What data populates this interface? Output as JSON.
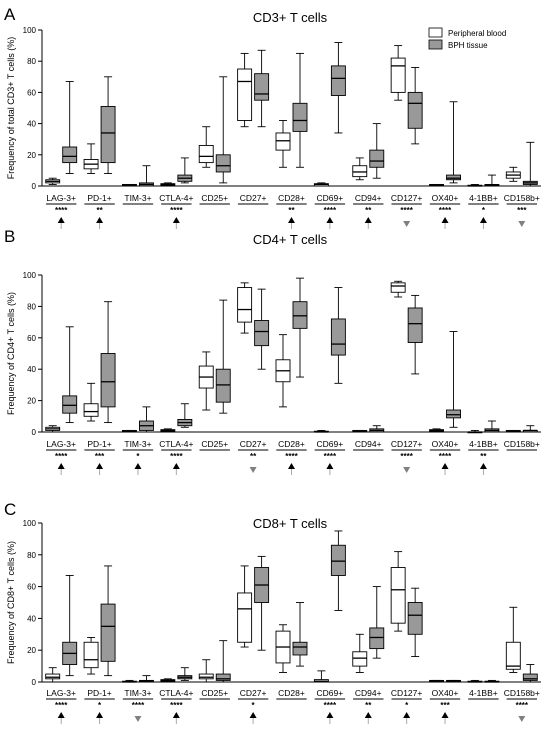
{
  "chart_data": [
    {
      "type": "boxplot",
      "panel_letter": "A",
      "title": "CD3+ T cells",
      "ylabel": "Frequency of total CD3+ T cells (%)",
      "ylim": [
        0,
        100
      ],
      "yticks": [
        0,
        20,
        40,
        60,
        80,
        100
      ],
      "legend": [
        "Peripheral blood",
        "BPH tissue"
      ],
      "legend_position": "top-right",
      "categories": [
        "LAG-3+",
        "PD-1+",
        "TIM-3+",
        "CTLA-4+",
        "CD25+",
        "CD27+",
        "CD28+",
        "CD69+",
        "CD94+",
        "CD127+",
        "OX40+",
        "4-1BB+",
        "CD158b+"
      ],
      "significance": [
        "****",
        "**",
        "",
        "****",
        "",
        "",
        "**",
        "****",
        "**",
        "****",
        "****",
        "*",
        "***"
      ],
      "arrows": [
        "up",
        "up",
        "",
        "up",
        "",
        "",
        "up",
        "up",
        "up",
        "down",
        "up",
        "up",
        "down"
      ],
      "series": [
        {
          "name": "Peripheral blood",
          "fill": "#ffffff",
          "boxes": [
            [
              1,
              2,
              3,
              4,
              5
            ],
            [
              8,
              11,
              14,
              17,
              27
            ],
            [
              0,
              0,
              0.5,
              1,
              1
            ],
            [
              0,
              0.5,
              1,
              1.5,
              2
            ],
            [
              12,
              15,
              19,
              26,
              38
            ],
            [
              38,
              42,
              67,
              75,
              85
            ],
            [
              12,
              23,
              29,
              34,
              42
            ],
            [
              0,
              0,
              1,
              1.5,
              2
            ],
            [
              4,
              6,
              9,
              13,
              18
            ],
            [
              55,
              60,
              77,
              82,
              90
            ],
            [
              0,
              0,
              0.5,
              1,
              1
            ],
            [
              0,
              0,
              0,
              0.5,
              1
            ],
            [
              3,
              5,
              7,
              9,
              12
            ]
          ]
        },
        {
          "name": "BPH tissue",
          "fill": "#999999",
          "boxes": [
            [
              8,
              15,
              19,
              25,
              67
            ],
            [
              8,
              15,
              34,
              51,
              70
            ],
            [
              0,
              0,
              1,
              2,
              13
            ],
            [
              2,
              3,
              5,
              7,
              18
            ],
            [
              2,
              9,
              13,
              20,
              70
            ],
            [
              38,
              55,
              59,
              72,
              87
            ],
            [
              12,
              35,
              42,
              53,
              85
            ],
            [
              34,
              58,
              69,
              77,
              92
            ],
            [
              5,
              12,
              16,
              23,
              40
            ],
            [
              27,
              37,
              53,
              60,
              76
            ],
            [
              2,
              4,
              5,
              7,
              54
            ],
            [
              0,
              0,
              0.5,
              1,
              7
            ],
            [
              0,
              1,
              2,
              3,
              28
            ]
          ]
        }
      ]
    },
    {
      "type": "boxplot",
      "panel_letter": "B",
      "title": "CD4+ T cells",
      "ylabel": "Frequency of CD4+ T cells (%)",
      "ylim": [
        0,
        100
      ],
      "yticks": [
        0,
        20,
        40,
        60,
        80,
        100
      ],
      "categories": [
        "LAG-3+",
        "PD-1+",
        "TIM-3+",
        "CTLA-4+",
        "CD25+",
        "CD27+",
        "CD28+",
        "CD69+",
        "CD94+",
        "CD127+",
        "OX40+",
        "4-1BB+",
        "CD158b+"
      ],
      "significance": [
        "****",
        "***",
        "*",
        "****",
        "",
        "**",
        "****",
        "****",
        "",
        "****",
        "****",
        "**",
        ""
      ],
      "arrows": [
        "up",
        "up",
        "up",
        "up",
        "",
        "down",
        "up",
        "up",
        "",
        "down",
        "up",
        "up",
        ""
      ],
      "series": [
        {
          "name": "Peripheral blood",
          "fill": "#ffffff",
          "boxes": [
            [
              0,
              1,
              2,
              3,
              4
            ],
            [
              7,
              10,
              13,
              18,
              31
            ],
            [
              0,
              0,
              0.5,
              1,
              1
            ],
            [
              0,
              0.5,
              1,
              1.5,
              2
            ],
            [
              14,
              28,
              35,
              42,
              51
            ],
            [
              63,
              70,
              78,
              92,
              95
            ],
            [
              16,
              32,
              39,
              46,
              62
            ],
            [
              0,
              0,
              0,
              0.5,
              1
            ],
            [
              0,
              0,
              0.5,
              1,
              1
            ],
            [
              86,
              89,
              93,
              95,
              96
            ],
            [
              0,
              0.5,
              1,
              1.5,
              2
            ],
            [
              0,
              0,
              0,
              0,
              1
            ],
            [
              0,
              0,
              0.5,
              1,
              1
            ]
          ]
        },
        {
          "name": "BPH tissue",
          "fill": "#999999",
          "boxes": [
            [
              6,
              12,
              17,
              23,
              67
            ],
            [
              6,
              16,
              32,
              50,
              83
            ],
            [
              0,
              1,
              4,
              7,
              16
            ],
            [
              3,
              4,
              6,
              8,
              18
            ],
            [
              12,
              19,
              30,
              40,
              84
            ],
            [
              40,
              55,
              64,
              71,
              91
            ],
            [
              35,
              66,
              74,
              83,
              98
            ],
            [
              31,
              49,
              56,
              72,
              92
            ],
            [
              0,
              0,
              1,
              2,
              4
            ],
            [
              37,
              57,
              69,
              79,
              87
            ],
            [
              3,
              9,
              11,
              14,
              64
            ],
            [
              0,
              0,
              1,
              2,
              7
            ],
            [
              0,
              0,
              1,
              1,
              4
            ]
          ]
        }
      ]
    },
    {
      "type": "boxplot",
      "panel_letter": "C",
      "title": "CD8+ T cells",
      "ylabel": "Frequency of CD8+ T cells (%)",
      "ylim": [
        0,
        100
      ],
      "yticks": [
        0,
        20,
        40,
        60,
        80,
        100
      ],
      "categories": [
        "LAG-3+",
        "PD-1+",
        "TIM-3+",
        "CTLA-4+",
        "CD25+",
        "CD27+",
        "CD28+",
        "CD69+",
        "CD94+",
        "CD127+",
        "OX40+",
        "4-1BB+",
        "CD158b+"
      ],
      "significance": [
        "****",
        "*",
        "****",
        "****",
        "",
        "*",
        "",
        "****",
        "**",
        "*",
        "***",
        "",
        "****"
      ],
      "arrows": [
        "up",
        "up",
        "down",
        "up",
        "",
        "up",
        "",
        "up",
        "up",
        "up",
        "up",
        "",
        "down"
      ],
      "series": [
        {
          "name": "Peripheral blood",
          "fill": "#ffffff",
          "boxes": [
            [
              0,
              2,
              3,
              5,
              9
            ],
            [
              5,
              9,
              14,
              25,
              28
            ],
            [
              0,
              0,
              0,
              0.5,
              1
            ],
            [
              0,
              0.5,
              1,
              1.5,
              2
            ],
            [
              0,
              2,
              3,
              5,
              14
            ],
            [
              22,
              25,
              46,
              56,
              73
            ],
            [
              6,
              12,
              22,
              32,
              36
            ],
            [
              0,
              0,
              0.5,
              1.5,
              7
            ],
            [
              6,
              10,
              15,
              19,
              30
            ],
            [
              32,
              37,
              58,
              72,
              82
            ],
            [
              0,
              0,
              0.5,
              1,
              1
            ],
            [
              0,
              0,
              0,
              0.5,
              1
            ],
            [
              6,
              8,
              10,
              25,
              47
            ]
          ]
        },
        {
          "name": "BPH tissue",
          "fill": "#999999",
          "boxes": [
            [
              4,
              11,
              18,
              25,
              67
            ],
            [
              4,
              13,
              35,
              49,
              73
            ],
            [
              0,
              0,
              0.5,
              1,
              4
            ],
            [
              1,
              2,
              3,
              4,
              9
            ],
            [
              0,
              1,
              2,
              5,
              26
            ],
            [
              20,
              50,
              61,
              72,
              79
            ],
            [
              10,
              17,
              22,
              25,
              50
            ],
            [
              45,
              67,
              76,
              86,
              95
            ],
            [
              15,
              21,
              28,
              34,
              60
            ],
            [
              16,
              30,
              42,
              50,
              59
            ],
            [
              0,
              0,
              0.5,
              1,
              1
            ],
            [
              0,
              0,
              0,
              0.5,
              1
            ],
            [
              0,
              1,
              2,
              5,
              11
            ]
          ]
        }
      ]
    }
  ]
}
